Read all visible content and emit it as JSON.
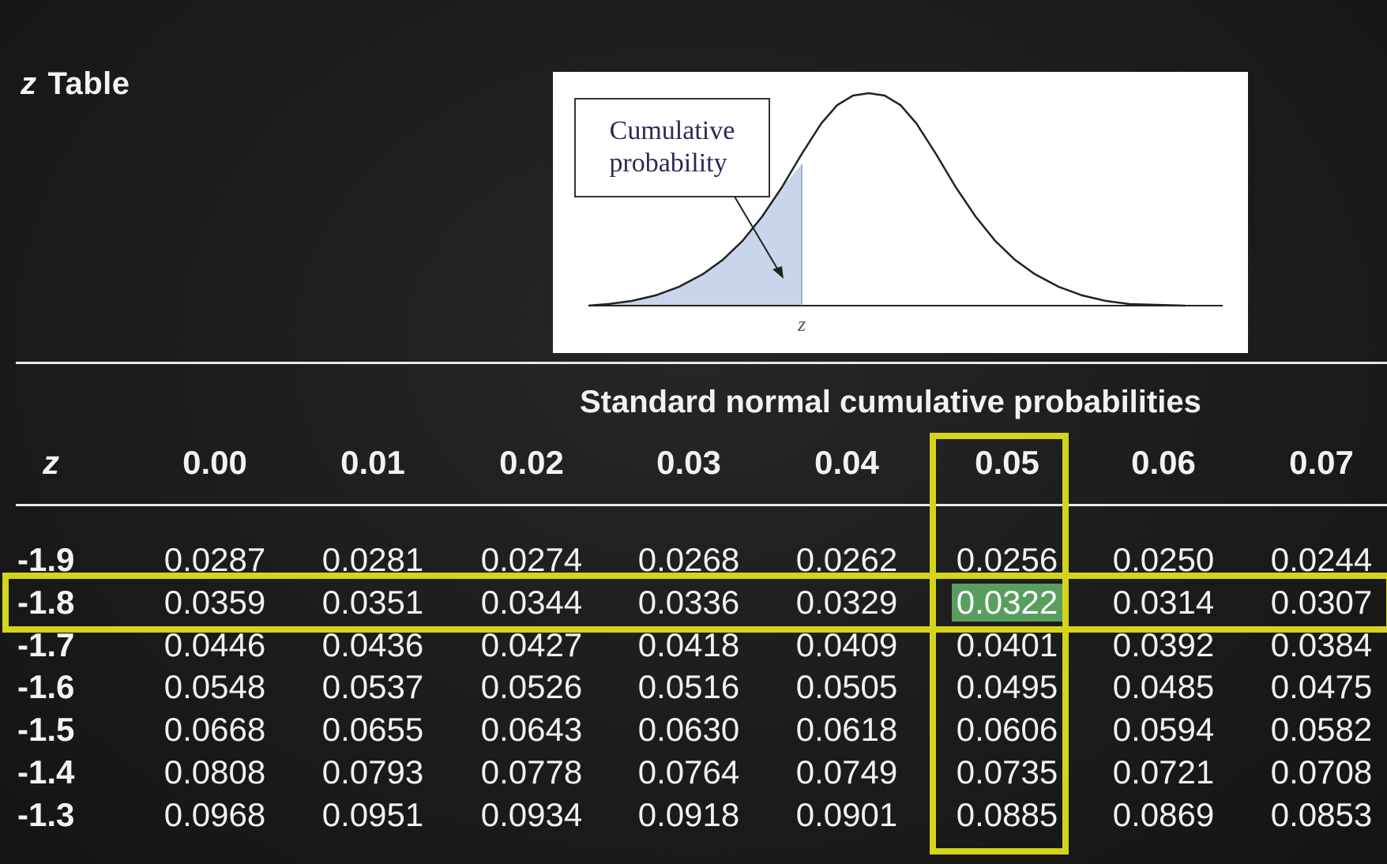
{
  "title": {
    "z": "z",
    "text": "Table"
  },
  "figure": {
    "label_line1": "Cumulative",
    "label_line2": "probability",
    "axis_label": "z"
  },
  "table": {
    "caption": "Standard normal cumulative probabilities",
    "z_header": "z",
    "columns": [
      "0.00",
      "0.01",
      "0.02",
      "0.03",
      "0.04",
      "0.05",
      "0.06",
      "0.07"
    ],
    "rows": [
      {
        "z": "-1.9",
        "values": [
          "0.0287",
          "0.0281",
          "0.0274",
          "0.0268",
          "0.0262",
          "0.0256",
          "0.0250",
          "0.0244"
        ]
      },
      {
        "z": "-1.8",
        "values": [
          "0.0359",
          "0.0351",
          "0.0344",
          "0.0336",
          "0.0329",
          "0.0322",
          "0.0314",
          "0.0307"
        ]
      },
      {
        "z": "-1.7",
        "values": [
          "0.0446",
          "0.0436",
          "0.0427",
          "0.0418",
          "0.0409",
          "0.0401",
          "0.0392",
          "0.0384"
        ]
      },
      {
        "z": "-1.6",
        "values": [
          "0.0548",
          "0.0537",
          "0.0526",
          "0.0516",
          "0.0505",
          "0.0495",
          "0.0485",
          "0.0475"
        ]
      },
      {
        "z": "-1.5",
        "values": [
          "0.0668",
          "0.0655",
          "0.0643",
          "0.0630",
          "0.0618",
          "0.0606",
          "0.0594",
          "0.0582"
        ]
      },
      {
        "z": "-1.4",
        "values": [
          "0.0808",
          "0.0793",
          "0.0778",
          "0.0764",
          "0.0749",
          "0.0735",
          "0.0721",
          "0.0708"
        ]
      },
      {
        "z": "-1.3",
        "values": [
          "0.0968",
          "0.0951",
          "0.0934",
          "0.0918",
          "0.0901",
          "0.0885",
          "0.0869",
          "0.0853"
        ]
      }
    ],
    "highlight_row_index": 1,
    "highlight_col_index": 5
  },
  "colors": {
    "highlight_border": "#d4d41c",
    "selected_cell": "#5a9e5f",
    "shaded_area": "#c9d5ea",
    "background": "#1e1e1e"
  }
}
